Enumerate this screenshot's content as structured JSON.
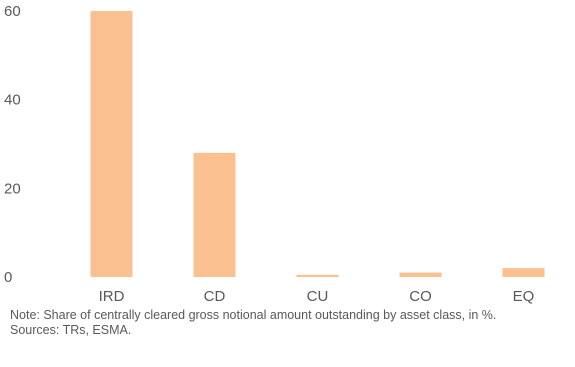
{
  "chart_data": {
    "type": "bar",
    "categories": [
      "IRD",
      "CD",
      "CU",
      "CO",
      "EQ"
    ],
    "values": [
      60,
      28,
      0.5,
      1,
      2
    ],
    "ylim": [
      0,
      60
    ],
    "yticks": [
      0,
      20,
      40,
      60
    ],
    "grid": false,
    "legend": "none",
    "title": "",
    "xlabel": "",
    "ylabel": "",
    "colors": {
      "bar": "#FAC090",
      "tick_text": "#595959"
    }
  },
  "note": "Note: Share of centrally cleared gross notional amount outstanding by asset class, in %.",
  "sources": "Sources: TRs, ESMA."
}
